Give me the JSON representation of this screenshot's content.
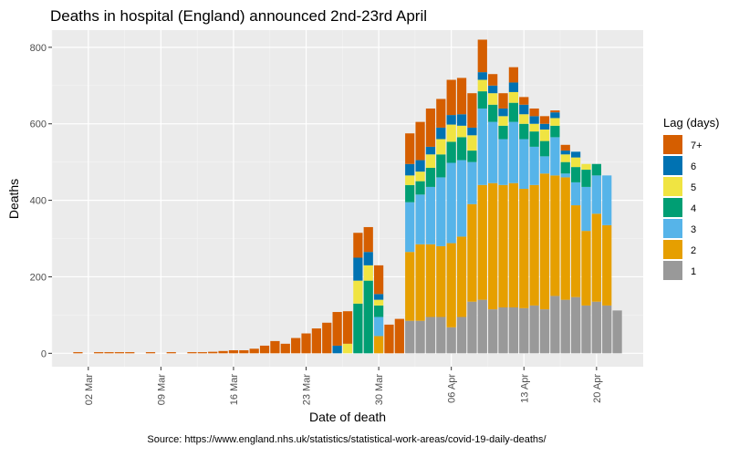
{
  "chart_data": {
    "type": "bar",
    "stacked": true,
    "title": "Deaths in hospital (England) announced 2nd-23rd April",
    "xlabel": "Date of death",
    "ylabel": "Deaths",
    "caption": "Source: https://www.england.nhs.uk/statistics/statistical-work-areas/covid-19-daily-deaths/",
    "ylim": [
      -35,
      845
    ],
    "yticks": [
      0,
      200,
      400,
      600,
      800
    ],
    "grid": true,
    "x_ticks": [
      {
        "day": 2,
        "label": "02 Mar"
      },
      {
        "day": 9,
        "label": "09 Mar"
      },
      {
        "day": 16,
        "label": "16 Mar"
      },
      {
        "day": 23,
        "label": "23 Mar"
      },
      {
        "day": 30,
        "label": "30 Mar"
      },
      {
        "day": 37,
        "label": "06 Apr"
      },
      {
        "day": 44,
        "label": "13 Apr"
      },
      {
        "day": 51,
        "label": "20 Apr"
      }
    ],
    "x_range": [
      -1.5,
      55.5
    ],
    "legend": {
      "title": "Lag (days)",
      "position": "right",
      "entries": [
        "7+",
        "6",
        "5",
        "4",
        "3",
        "2",
        "1"
      ]
    },
    "colors": {
      "1": "#999999",
      "2": "#E69F00",
      "3": "#56B4E9",
      "4": "#009E73",
      "5": "#F0E442",
      "6": "#0072B2",
      "7+": "#D55E00"
    },
    "series_order": [
      "1",
      "2",
      "3",
      "4",
      "5",
      "6",
      "7+"
    ],
    "days": [
      1,
      3,
      4,
      5,
      6,
      8,
      10,
      12,
      13,
      14,
      15,
      16,
      17,
      18,
      19,
      20,
      21,
      22,
      23,
      24,
      25,
      26,
      27,
      28,
      29,
      30,
      31,
      32,
      33,
      34,
      35,
      36,
      37,
      38,
      39,
      40,
      41,
      42,
      43,
      44,
      45,
      46,
      47,
      48,
      49,
      50,
      51,
      52,
      53
    ],
    "series": [
      {
        "name": "1",
        "values": [
          0,
          0,
          0,
          0,
          0,
          0,
          0,
          0,
          0,
          0,
          0,
          0,
          0,
          0,
          0,
          0,
          0,
          0,
          0,
          0,
          0,
          0,
          0,
          0,
          0,
          0,
          0,
          0,
          85,
          85,
          95,
          95,
          68,
          95,
          135,
          140,
          115,
          120,
          120,
          118,
          125,
          115,
          150,
          140,
          147,
          125,
          135,
          125,
          112
        ]
      },
      {
        "name": "2",
        "values": [
          0,
          0,
          0,
          0,
          0,
          0,
          0,
          0,
          0,
          0,
          0,
          0,
          0,
          0,
          0,
          0,
          0,
          0,
          0,
          0,
          0,
          0,
          0,
          0,
          0,
          0,
          0,
          0,
          180,
          200,
          190,
          185,
          220,
          210,
          255,
          300,
          330,
          320,
          325,
          312,
          315,
          355,
          315,
          320,
          240,
          195,
          230,
          210,
          0
        ]
      },
      {
        "name": "3",
        "values": [
          0,
          0,
          0,
          0,
          0,
          0,
          0,
          0,
          0,
          0,
          0,
          0,
          0,
          0,
          0,
          0,
          0,
          0,
          0,
          0,
          0,
          0,
          0,
          0,
          0,
          0,
          0,
          0,
          130,
          130,
          150,
          180,
          210,
          200,
          110,
          200,
          160,
          120,
          160,
          130,
          100,
          45,
          100,
          10,
          60,
          115,
          100,
          130,
          0
        ]
      },
      {
        "name": "4",
        "values": [
          0,
          0,
          0,
          0,
          0,
          0,
          0,
          0,
          0,
          0,
          0,
          0,
          0,
          0,
          0,
          0,
          0,
          0,
          0,
          0,
          0,
          0,
          0,
          0,
          0,
          0,
          0,
          0,
          45,
          35,
          50,
          60,
          55,
          60,
          30,
          45,
          45,
          35,
          50,
          40,
          40,
          40,
          30,
          30,
          40,
          45,
          30,
          0,
          0
        ]
      },
      {
        "name": "5",
        "values": [
          0,
          0,
          0,
          0,
          0,
          0,
          0,
          0,
          0,
          0,
          0,
          0,
          0,
          0,
          0,
          0,
          0,
          0,
          0,
          0,
          0,
          0,
          0,
          0,
          0,
          0,
          0,
          0,
          25,
          25,
          35,
          40,
          45,
          30,
          40,
          30,
          30,
          25,
          28,
          25,
          20,
          30,
          20,
          20,
          25,
          15,
          0,
          0,
          0
        ]
      },
      {
        "name": "6",
        "values": [
          0,
          0,
          0,
          0,
          0,
          0,
          0,
          0,
          0,
          0,
          0,
          0,
          0,
          0,
          0,
          0,
          0,
          0,
          0,
          0,
          0,
          0,
          0,
          0,
          0,
          0,
          0,
          0,
          30,
          30,
          20,
          30,
          25,
          30,
          20,
          20,
          20,
          20,
          25,
          25,
          20,
          15,
          15,
          10,
          15,
          0,
          0,
          0,
          0
        ]
      },
      {
        "name": "7+",
        "values": [
          3,
          3,
          3,
          3,
          3,
          3,
          3,
          3,
          3,
          4,
          6,
          8,
          8,
          12,
          20,
          32,
          25,
          40,
          52,
          65,
          80,
          88,
          110,
          108,
          75,
          70,
          75,
          90,
          80,
          100,
          100,
          75,
          92,
          95,
          90,
          85,
          30,
          40,
          40,
          20,
          20,
          20,
          5,
          15,
          0,
          0,
          0,
          0,
          0
        ]
      }
    ],
    "early": [
      {
        "day": 26,
        "v1": 0,
        "v2": 0,
        "v3": 0,
        "v4": 0,
        "v5": 0,
        "v6": 20,
        "v7": 88
      },
      {
        "day": 27,
        "v1": 0,
        "v2": 0,
        "v3": 0,
        "v4": 0,
        "v5": 25,
        "v6": 0,
        "v7": 85
      },
      {
        "day": 28,
        "v1": 0,
        "v2": 0,
        "v3": 0,
        "v4": 130,
        "v5": 60,
        "v6": 60,
        "v7": 65
      },
      {
        "day": 29,
        "v1": 0,
        "v2": 0,
        "v3": 0,
        "v4": 190,
        "v5": 40,
        "v6": 35,
        "v7": 65
      },
      {
        "day": 30,
        "v1": 0,
        "v2": 45,
        "v3": 50,
        "v4": 30,
        "v5": 15,
        "v6": 15,
        "v7": 75
      }
    ]
  }
}
